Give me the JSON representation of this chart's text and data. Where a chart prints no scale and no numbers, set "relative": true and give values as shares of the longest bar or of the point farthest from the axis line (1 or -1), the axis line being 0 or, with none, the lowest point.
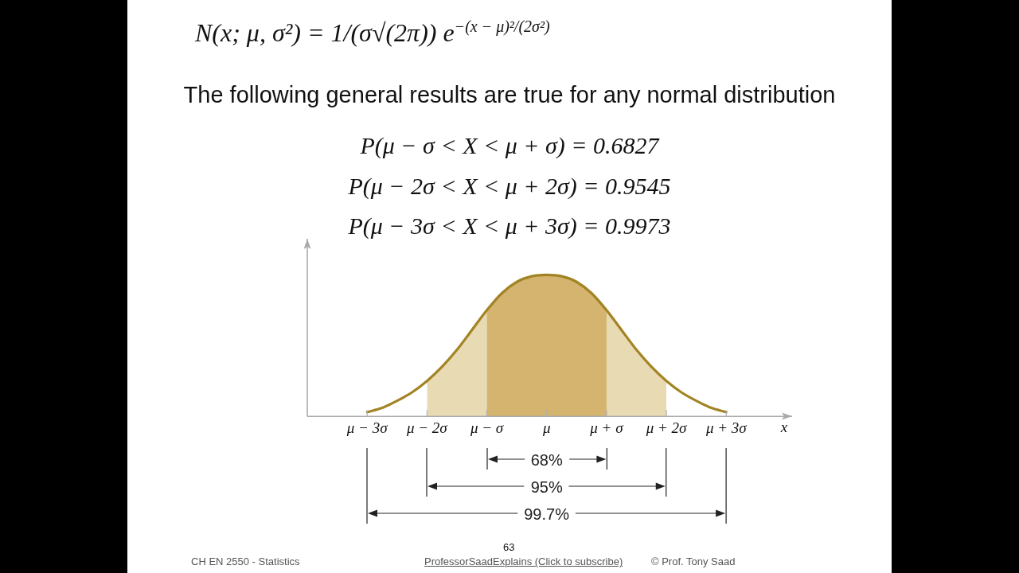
{
  "chart_data": {
    "type": "line",
    "title": "N(x; μ, σ²) = 1/(σ√(2π)) e$^{−(x − μ)²/(2σ²)}$",
    "subtitle": "The following general results are true for any normal distribution",
    "xlabel": "x",
    "relative": true,
    "tick_labels": "x",
    "series": [
      {
        "type": "area",
        "color": "#d4b46e",
        "x": [
          -1,
          -0.75,
          -0.5,
          -0.25,
          0,
          0.25,
          0.5,
          0.75,
          1
        ],
        "values": [
          0.75,
          0.87,
          0.95,
          0.99,
          1,
          0.99,
          0.95,
          0.87,
          0.75
        ]
      },
      {
        "type": "area",
        "color": "#e8dab3",
        "x": [
          -2,
          -1.75,
          -1.5,
          -1.25,
          -1,
          -0.75,
          -0.5,
          -0.25,
          0,
          0.25,
          0.5,
          0.75,
          1,
          1.25,
          1.5,
          1.75,
          2
        ],
        "values": [
          0.25,
          0.35,
          0.47,
          0.61,
          0.75,
          0.87,
          0.95,
          0.99,
          1,
          0.99,
          0.95,
          0.87,
          0.75,
          0.61,
          0.47,
          0.35,
          0.25
        ]
      },
      {
        "color": "#a38425",
        "x": [
          -3,
          -2.75,
          -2.5,
          -2.25,
          -2,
          -1.75,
          -1.5,
          -1.25,
          -1,
          -0.75,
          -0.5,
          -0.25,
          0,
          0.25,
          0.5,
          0.75,
          1,
          1.25,
          1.5,
          1.75,
          2,
          2.25,
          2.5,
          2.75,
          3
        ],
        "values": [
          0.03,
          0.06,
          0.11,
          0.17,
          0.25,
          0.35,
          0.47,
          0.61,
          0.75,
          0.87,
          0.95,
          0.99,
          1,
          0.99,
          0.95,
          0.87,
          0.75,
          0.61,
          0.47,
          0.35,
          0.25,
          0.17,
          0.11,
          0.06,
          0.03
        ]
      }
    ],
    "xlim": [
      -4,
      4.1
    ],
    "xticks": [
      {
        "value": -3,
        "label": "μ − 3σ"
      },
      {
        "value": -2,
        "label": "μ − 2σ"
      },
      {
        "value": -1,
        "label": "μ − σ"
      },
      {
        "value": 0,
        "label": "μ"
      },
      {
        "value": 1,
        "label": "μ + σ"
      },
      {
        "value": 2,
        "label": "μ + 2σ"
      },
      {
        "value": 3,
        "label": "μ + 3σ"
      }
    ],
    "annotations": [
      "P(μ − σ < X < μ + σ) = 0.6827",
      "P(μ − 2σ < X < μ + 2σ) = 0.9545",
      "P(μ − 3σ < X < μ + 3σ) = 0.9973",
      "68%",
      "95%",
      "99.7%",
      "CH EN 2550 - Statistics",
      "63",
      "ProfessorSaadExplains (Click to subscribe)",
      "© Prof. Tony Saad"
    ]
  }
}
